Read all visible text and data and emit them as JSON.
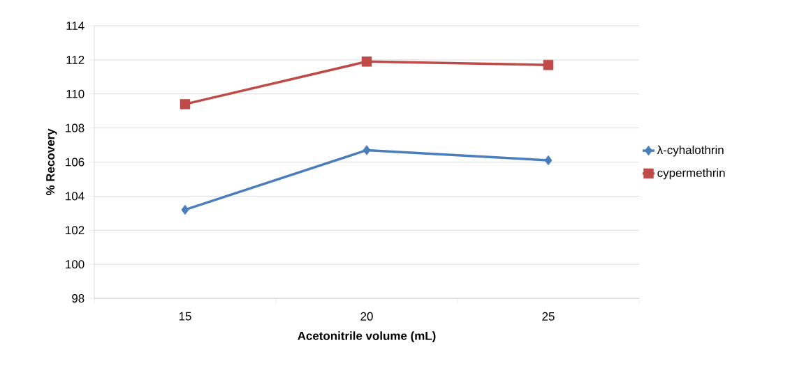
{
  "chart_data": {
    "type": "line",
    "xlabel": "Acetonitrile volume (mL)",
    "ylabel": "% Recovery",
    "categories": [
      "15",
      "20",
      "25"
    ],
    "series": [
      {
        "name": "λ-cyhalothrin",
        "color": "#4a7ebb",
        "marker": "diamond",
        "values": [
          103.2,
          106.7,
          106.1
        ]
      },
      {
        "name": "cypermethrin",
        "color": "#be4b48",
        "marker": "square",
        "values": [
          109.4,
          111.9,
          111.7
        ]
      }
    ],
    "ylim": [
      98,
      114
    ],
    "yticks": [
      98,
      100,
      102,
      104,
      106,
      108,
      110,
      112,
      114
    ],
    "grid": "y",
    "legend": "right"
  }
}
